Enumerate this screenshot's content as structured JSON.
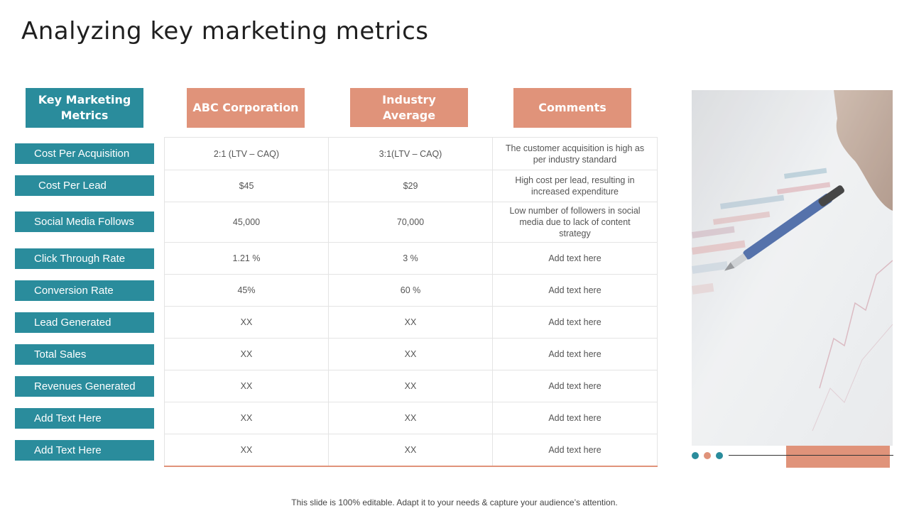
{
  "title": "Analyzing key marketing metrics",
  "headers": [
    "Key Marketing Metrics",
    "ABC Corporation",
    "Industry Average",
    "Comments"
  ],
  "metrics": [
    "Cost Per Acquisition",
    "Cost Per Lead",
    "Social Media Follows",
    "Click Through Rate",
    "Conversion Rate",
    "Lead Generated",
    "Total Sales",
    "Revenues Generated",
    "Add Text Here",
    "Add Text Here"
  ],
  "rows": [
    [
      "2:1 (LTV – CAQ)",
      "3:1(LTV – CAQ)",
      "The customer acquisition is high as per industry standard"
    ],
    [
      "$45",
      "$29",
      "High cost per lead, resulting in increased expenditure"
    ],
    [
      "45,000",
      "70,000",
      "Low number of followers in social media due to lack of content strategy"
    ],
    [
      "1.21 %",
      "3 %",
      "Add text here"
    ],
    [
      "45%",
      "60 %",
      "Add text here"
    ],
    [
      "XX",
      "XX",
      "Add text here"
    ],
    [
      "XX",
      "XX",
      "Add text here"
    ],
    [
      "XX",
      "XX",
      "Add text here"
    ],
    [
      "XX",
      "XX",
      "Add text here"
    ],
    [
      "XX",
      "XX",
      "Add text here"
    ]
  ],
  "footer": "This slide is 100% editable. Adapt it to your needs & capture your audience’s attention.",
  "colors": {
    "teal": "#2a8c9c",
    "salmon": "#e0937a",
    "dots": [
      "#2a8c9c",
      "#e0937a",
      "#2a8c9c"
    ]
  },
  "image": {
    "icon": "pen-on-chart-photo-icon"
  }
}
